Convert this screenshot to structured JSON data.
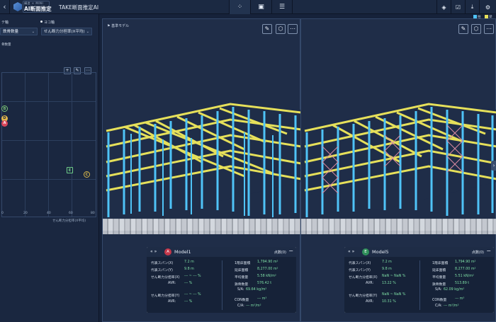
{
  "topbar": {
    "brand_small": "構造 × MINI",
    "brand": "AI断面推定",
    "title": "TAKE断面推定AI",
    "back_icon": "chevron-left-icon",
    "tabs": [
      {
        "icon": "scatter-icon",
        "glyph": "⁘"
      },
      {
        "icon": "image-icon",
        "glyph": "▣"
      },
      {
        "icon": "list-icon",
        "glyph": "☰"
      }
    ],
    "right_icons": [
      {
        "icon": "paint-bucket-icon",
        "glyph": "◈"
      },
      {
        "icon": "checkbox-icon",
        "glyph": "☑"
      },
      {
        "icon": "export-icon",
        "glyph": "⤓"
      },
      {
        "icon": "gear-icon",
        "glyph": "⚙"
      }
    ],
    "legend_labels": [
      "柱",
      "梁"
    ]
  },
  "sidebar": {
    "y_axis_label": "テ軸",
    "x_axis_label": "ヨコ軸",
    "y_axis_value": "鉄骨数量",
    "x_axis_value": "せん断力分担率(X平均)",
    "panel_label": "骨数量",
    "scatter": {
      "x_ticks": [
        "0",
        "20",
        "40",
        "60",
        "80"
      ],
      "x_axis_title": "せん断力分担率(X平均)",
      "points": [
        {
          "label": "B",
          "color": "#7cc576"
        },
        {
          "label": "D",
          "color": "#e2b64b"
        },
        {
          "label": "A",
          "color": "#d6455a"
        },
        {
          "label": "E",
          "color": "#6fcf8a"
        },
        {
          "label": "C",
          "color": "#d9b84a"
        }
      ]
    }
  },
  "views": [
    {
      "tag": "基準モデル",
      "panel": {
        "badge": "A",
        "name": "Model1",
        "count": "点数(0)",
        "left": [
          {
            "k": "代表スパン(X)",
            "v": "7.2 m"
          },
          {
            "k": "代表スパン(Y)",
            "v": "9.8 m"
          },
          {
            "k": "せん断力分担率(X)",
            "v": "--- ~ --- %"
          },
          {
            "k": "AVR:",
            "v": "--- %"
          },
          {
            "k": "せん断力分担率(Y)",
            "v": "--- ~ --- %"
          },
          {
            "k": "AVR:",
            "v": "--- %"
          }
        ],
        "right": [
          {
            "k": "1階床面積",
            "v": "1,794.90 m²"
          },
          {
            "k": "延床面積",
            "v": "8,277.00 m²"
          },
          {
            "k": "平均重量",
            "v": "5.58 kN/m²"
          },
          {
            "k": "鉄骨数量",
            "v": "576.42 t"
          },
          {
            "k": "S/A:",
            "v": "69.64 kg/m²"
          },
          {
            "k": "CON数量",
            "v": "--- m³"
          },
          {
            "k": "C/A:",
            "v": "--- m³/m²"
          }
        ]
      }
    },
    {
      "tag": "",
      "panel": {
        "badge": "E",
        "name": "Model5",
        "count": "点数(0)",
        "left": [
          {
            "k": "代表スパン(X)",
            "v": "7.2 m"
          },
          {
            "k": "代表スパン(Y)",
            "v": "9.8 m"
          },
          {
            "k": "せん断力分担率(X)",
            "v": "NaN ~ NaN %"
          },
          {
            "k": "AVR:",
            "v": "13.22 %"
          },
          {
            "k": "せん断力分担率(Y)",
            "v": "NaN ~ NaN %"
          },
          {
            "k": "AVR:",
            "v": "10.31 %"
          }
        ],
        "right": [
          {
            "k": "1階床面積",
            "v": "1,794.90 m²"
          },
          {
            "k": "延床面積",
            "v": "8,277.00 m²"
          },
          {
            "k": "平均重量",
            "v": "5.51 kN/m²"
          },
          {
            "k": "鉄骨数量",
            "v": "513.89 t"
          },
          {
            "k": "S/A:",
            "v": "62.09 kg/m²"
          },
          {
            "k": "CON数量",
            "v": "--- m³"
          },
          {
            "k": "C/A:",
            "v": "--- m³/m²"
          }
        ]
      }
    }
  ]
}
